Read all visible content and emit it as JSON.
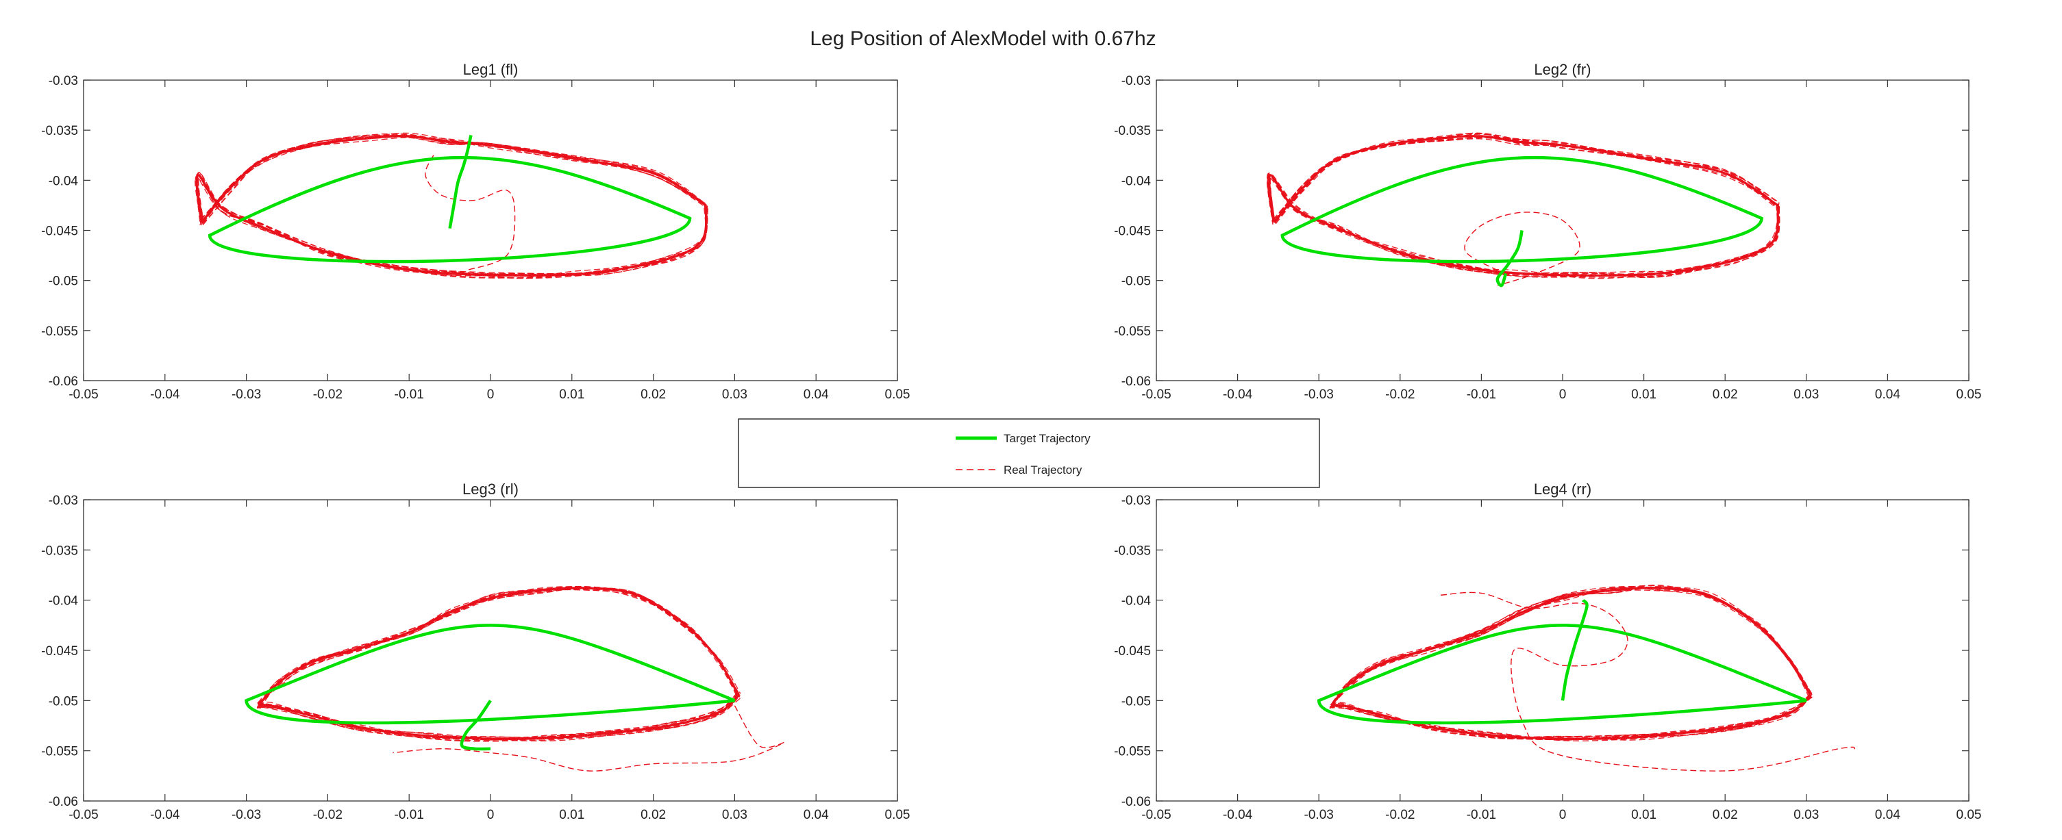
{
  "figure_title": "Leg Position of AlexModel with 0.67hz",
  "legend": {
    "target_label": "Target Trajectory",
    "real_label": "Real Trajectory"
  },
  "colors": {
    "target": "#00e000",
    "real": "#e8101a",
    "axes": "#333333"
  },
  "chart_data": [
    {
      "type": "line",
      "title": "Leg1 (fl)",
      "xlabel": "",
      "ylabel": "",
      "xlim": [
        -0.05,
        0.05
      ],
      "ylim": [
        -0.06,
        -0.03
      ],
      "xticks": [
        "-0.05",
        "-0.04",
        "-0.03",
        "-0.02",
        "-0.01",
        "0",
        "0.01",
        "0.02",
        "0.03",
        "0.04",
        "0.05"
      ],
      "yticks": [
        "-0.03",
        "-0.035",
        "-0.04",
        "-0.045",
        "-0.05",
        "-0.055",
        "-0.06"
      ],
      "grid": false,
      "target": {
        "ellipse": {
          "x": [
            -0.0345,
            0.0245,
            -0.01,
            0.0005,
            0.0245,
            -0.0345
          ],
          "y": [
            -0.0455,
            -0.0438,
            -0.0356,
            -0.0353,
            -0.0485,
            -0.0498
          ]
        },
        "approach": {
          "x": [
            -0.005,
            -0.0045,
            -0.004,
            -0.0033,
            -0.0028,
            -0.0024
          ],
          "y": [
            -0.0448,
            -0.0425,
            -0.0402,
            -0.0385,
            -0.037,
            -0.0355
          ]
        }
      },
      "real": {
        "upper": {
          "x": [
            -0.0355,
            -0.032,
            -0.028,
            -0.022,
            -0.015,
            -0.01,
            -0.005,
            0.0,
            0.01,
            0.02,
            0.0265
          ],
          "y": [
            -0.0442,
            -0.0408,
            -0.038,
            -0.0365,
            -0.0358,
            -0.0356,
            -0.0362,
            -0.0365,
            -0.0378,
            -0.0393,
            -0.0425
          ]
        },
        "lower": {
          "x": [
            0.0265,
            0.026,
            0.022,
            0.015,
            0.01,
            0.003,
            -0.005,
            -0.012,
            -0.02,
            -0.028,
            -0.033,
            -0.036,
            -0.0355
          ],
          "y": [
            -0.0425,
            -0.046,
            -0.0478,
            -0.049,
            -0.0494,
            -0.0495,
            -0.0493,
            -0.0487,
            -0.0472,
            -0.0447,
            -0.0428,
            -0.0395,
            -0.0442
          ]
        },
        "excursion": {
          "x": [
            -0.007,
            -0.008,
            -0.006,
            -0.002,
            0.002,
            0.003,
            0.002,
            -0.003
          ],
          "y": [
            -0.0375,
            -0.0395,
            -0.0415,
            -0.042,
            -0.041,
            -0.0435,
            -0.0475,
            -0.049
          ]
        }
      }
    },
    {
      "type": "line",
      "title": "Leg2 (fr)",
      "xlabel": "",
      "ylabel": "",
      "xlim": [
        -0.05,
        0.05
      ],
      "ylim": [
        -0.06,
        -0.03
      ],
      "xticks": [
        "-0.05",
        "-0.04",
        "-0.03",
        "-0.02",
        "-0.01",
        "0",
        "0.01",
        "0.02",
        "0.03",
        "0.04",
        "0.05"
      ],
      "yticks": [
        "-0.03",
        "-0.035",
        "-0.04",
        "-0.045",
        "-0.05",
        "-0.055",
        "-0.06"
      ],
      "grid": false,
      "target": {
        "ellipse": {
          "x": [
            -0.0345,
            0.0245,
            -0.01,
            0.0005,
            0.0245,
            -0.0345
          ],
          "y": [
            -0.0455,
            -0.0438,
            -0.0356,
            -0.0353,
            -0.0485,
            -0.0498
          ]
        },
        "approach": {
          "x": [
            -0.005,
            -0.0055,
            -0.0068,
            -0.008,
            -0.0075,
            -0.007
          ],
          "y": [
            -0.045,
            -0.0468,
            -0.0485,
            -0.0498,
            -0.0505,
            -0.0493
          ]
        }
      },
      "real": {
        "upper": {
          "x": [
            -0.0355,
            -0.032,
            -0.028,
            -0.022,
            -0.015,
            -0.01,
            -0.005,
            0.0,
            0.01,
            0.02,
            0.0265
          ],
          "y": [
            -0.0442,
            -0.0408,
            -0.038,
            -0.0365,
            -0.0358,
            -0.0356,
            -0.0362,
            -0.0365,
            -0.0378,
            -0.0393,
            -0.0425
          ]
        },
        "lower": {
          "x": [
            0.0265,
            0.026,
            0.022,
            0.015,
            0.01,
            0.003,
            -0.005,
            -0.012,
            -0.02,
            -0.028,
            -0.033,
            -0.036,
            -0.0355
          ],
          "y": [
            -0.0425,
            -0.046,
            -0.0478,
            -0.049,
            -0.0494,
            -0.0495,
            -0.0493,
            -0.0487,
            -0.0472,
            -0.0447,
            -0.0428,
            -0.0395,
            -0.0442
          ]
        },
        "excursion": {
          "x": [
            -0.008,
            -0.012,
            -0.01,
            -0.005,
            0.0,
            0.002,
            -0.003,
            -0.008
          ],
          "y": [
            -0.049,
            -0.047,
            -0.0445,
            -0.0432,
            -0.044,
            -0.047,
            -0.0492,
            -0.0505
          ]
        }
      }
    },
    {
      "type": "line",
      "title": "Leg3 (rl)",
      "xlabel": "",
      "ylabel": "",
      "xlim": [
        -0.05,
        0.05
      ],
      "ylim": [
        -0.06,
        -0.03
      ],
      "xticks": [
        "-0.05",
        "-0.04",
        "-0.03",
        "-0.02",
        "-0.01",
        "0",
        "0.01",
        "0.02",
        "0.03",
        "0.04",
        "0.05"
      ],
      "yticks": [
        "-0.03",
        "-0.035",
        "-0.04",
        "-0.045",
        "-0.05",
        "-0.055",
        "-0.06"
      ],
      "grid": false,
      "target": {
        "ellipse": {
          "x": [
            -0.03,
            0.03,
            0.0,
            0.0,
            0.03,
            -0.03
          ],
          "y": [
            -0.05,
            -0.05,
            -0.04,
            -0.04,
            -0.05,
            -0.055
          ]
        },
        "approach": {
          "x": [
            0.0,
            -0.0015,
            -0.003,
            -0.0035,
            -0.002,
            0.0
          ],
          "y": [
            -0.05,
            -0.0518,
            -0.0532,
            -0.0545,
            -0.0548,
            -0.0548
          ]
        }
      },
      "real": {
        "upper": {
          "x": [
            -0.0285,
            -0.026,
            -0.022,
            -0.016,
            -0.01,
            -0.005,
            0.0,
            0.006,
            0.012,
            0.018,
            0.024,
            0.028,
            0.0305
          ],
          "y": [
            -0.0505,
            -0.0482,
            -0.0462,
            -0.0448,
            -0.0432,
            -0.0412,
            -0.0398,
            -0.039,
            -0.0388,
            -0.0395,
            -0.0425,
            -0.046,
            -0.0495
          ]
        },
        "lower": {
          "x": [
            0.0305,
            0.028,
            0.022,
            0.015,
            0.008,
            0.0,
            -0.008,
            -0.016,
            -0.022,
            -0.027,
            -0.0285
          ],
          "y": [
            -0.0495,
            -0.0512,
            -0.0525,
            -0.0532,
            -0.0537,
            -0.0538,
            -0.0535,
            -0.0527,
            -0.0515,
            -0.0505,
            -0.0505
          ]
        },
        "excursion": {
          "x": [
            0.03,
            0.033,
            0.036,
            0.03,
            0.02,
            0.012,
            0.005,
            0.0,
            -0.006,
            -0.012
          ],
          "y": [
            -0.0505,
            -0.0545,
            -0.0542,
            -0.056,
            -0.0563,
            -0.057,
            -0.0557,
            -0.0552,
            -0.0548,
            -0.0552
          ]
        }
      }
    },
    {
      "type": "line",
      "title": "Leg4 (rr)",
      "xlabel": "",
      "ylabel": "",
      "xlim": [
        -0.05,
        0.05
      ],
      "ylim": [
        -0.06,
        -0.03
      ],
      "xticks": [
        "-0.05",
        "-0.04",
        "-0.03",
        "-0.02",
        "-0.01",
        "0",
        "0.01",
        "0.02",
        "0.03",
        "0.04",
        "0.05"
      ],
      "yticks": [
        "-0.03",
        "-0.035",
        "-0.04",
        "-0.045",
        "-0.05",
        "-0.055",
        "-0.06"
      ],
      "grid": false,
      "target": {
        "ellipse": {
          "x": [
            -0.03,
            0.03,
            0.0,
            0.0,
            0.03,
            -0.03
          ],
          "y": [
            -0.05,
            -0.05,
            -0.04,
            -0.04,
            -0.05,
            -0.055
          ]
        },
        "approach": {
          "x": [
            0.0,
            0.0005,
            0.0015,
            0.0025,
            0.003,
            0.0025
          ],
          "y": [
            -0.05,
            -0.0475,
            -0.0445,
            -0.042,
            -0.0405,
            -0.04
          ]
        }
      },
      "real": {
        "upper": {
          "x": [
            -0.0285,
            -0.026,
            -0.022,
            -0.016,
            -0.01,
            -0.005,
            0.0,
            0.006,
            0.012,
            0.018,
            0.024,
            0.028,
            0.0305
          ],
          "y": [
            -0.0505,
            -0.0482,
            -0.0462,
            -0.0448,
            -0.0432,
            -0.0412,
            -0.0398,
            -0.039,
            -0.0388,
            -0.0395,
            -0.0425,
            -0.046,
            -0.0495
          ]
        },
        "lower": {
          "x": [
            0.0305,
            0.028,
            0.022,
            0.015,
            0.008,
            0.0,
            -0.008,
            -0.016,
            -0.022,
            -0.027,
            -0.0285
          ],
          "y": [
            -0.0495,
            -0.0512,
            -0.0525,
            -0.0532,
            -0.0537,
            -0.0538,
            -0.0535,
            -0.0527,
            -0.0515,
            -0.0505,
            -0.0505
          ]
        },
        "excursion": {
          "x": [
            -0.015,
            -0.01,
            -0.004,
            0.002,
            0.006,
            0.008,
            0.006,
            0.0,
            -0.006,
            -0.005,
            0.0,
            0.02,
            0.034,
            0.036
          ],
          "y": [
            -0.0395,
            -0.0393,
            -0.0408,
            -0.0403,
            -0.0415,
            -0.044,
            -0.046,
            -0.0465,
            -0.045,
            -0.052,
            -0.0555,
            -0.057,
            -0.0548,
            -0.0548
          ]
        }
      }
    }
  ]
}
